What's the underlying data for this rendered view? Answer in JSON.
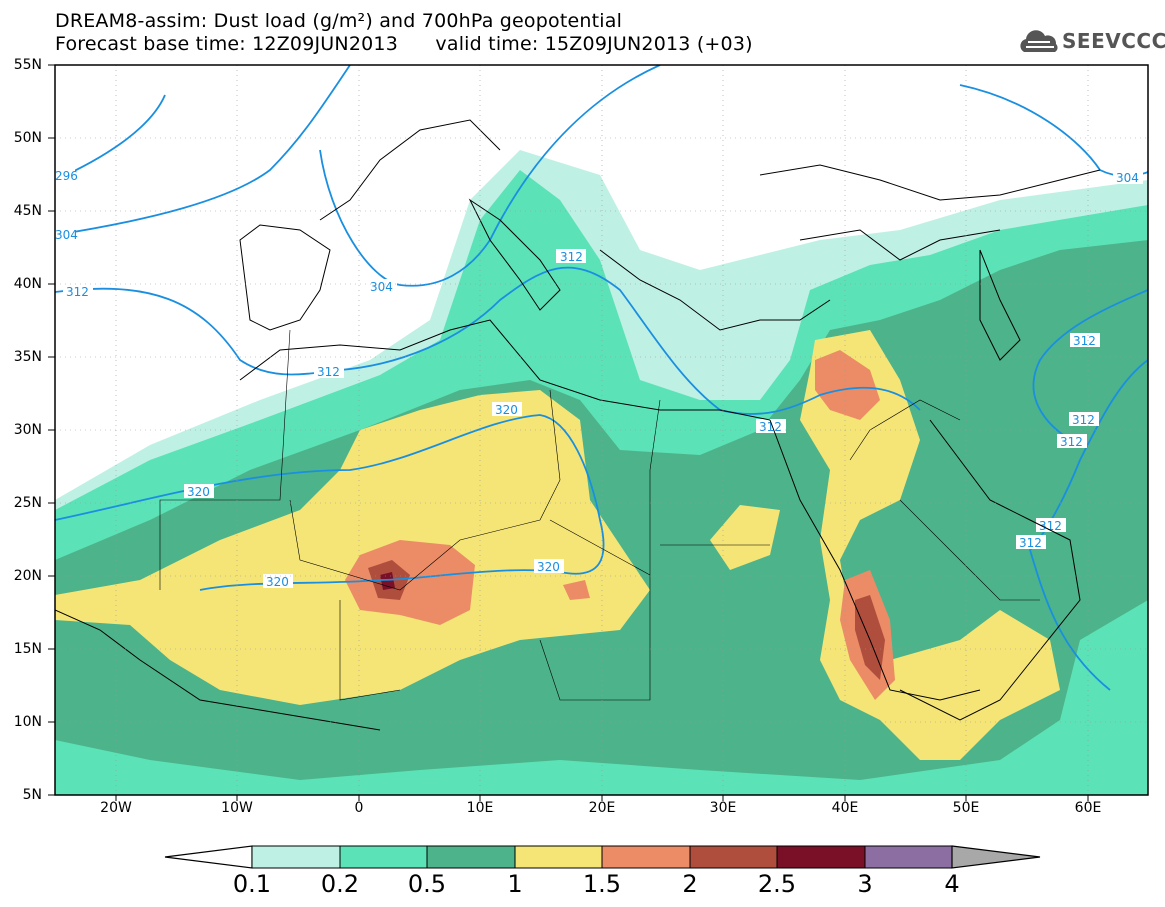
{
  "title": {
    "line1": "DREAM8-assim: Dust load (g/m²) and 700hPa geopotential",
    "line2": "Forecast base time: 12Z09JUN2013      valid time: 15Z09JUN2013 (+03)"
  },
  "logo": {
    "text": "SEEVCCC",
    "icon": "cloud-icon"
  },
  "axes": {
    "lat_labels": [
      "55N",
      "50N",
      "45N",
      "40N",
      "35N",
      "30N",
      "25N",
      "20N",
      "15N",
      "10N",
      "5N"
    ],
    "lon_labels": [
      "20W",
      "10W",
      "0",
      "10E",
      "20E",
      "30E",
      "40E",
      "50E",
      "60E"
    ],
    "lat_range": [
      5,
      55
    ],
    "lon_range": [
      -25,
      65
    ]
  },
  "colorbar": {
    "labels": [
      "0.1",
      "0.2",
      "0.5",
      "1",
      "1.5",
      "2",
      "2.5",
      "3",
      "4"
    ],
    "colors": [
      "#bff0e4",
      "#5ce2b7",
      "#4db38a",
      "#f5e576",
      "#eb8c66",
      "#b04e3e",
      "#7a0f28",
      "#8c6ea3",
      "#a8a8a8"
    ]
  },
  "contours": {
    "color": "#1a8fe0",
    "labels": [
      "296",
      "304",
      "312",
      "312",
      "304",
      "312",
      "320",
      "320",
      "320",
      "320",
      "312",
      "312",
      "312",
      "312",
      "312",
      "312",
      "304"
    ]
  }
}
